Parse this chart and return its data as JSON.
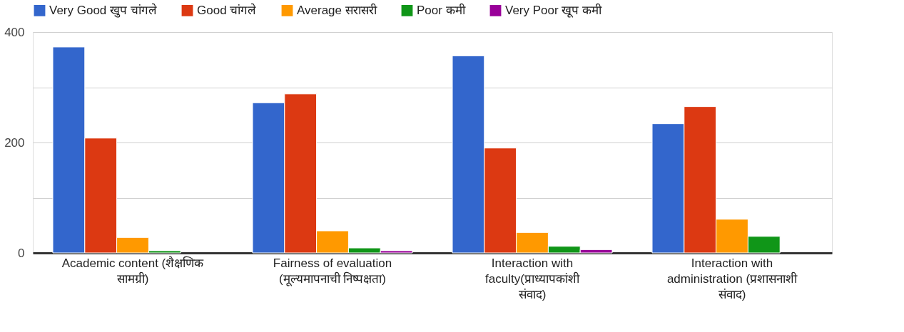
{
  "chart_data": {
    "type": "bar",
    "categories": [
      "Academic content (शैक्षणिक सामग्री)",
      "Fairness of evaluation (मूल्यमापनाची निष्पक्षता)",
      "Interaction with faculty(प्राध्यापकांशी संवाद)",
      "Interaction with administration (प्रशासनाशी संवाद)"
    ],
    "series": [
      {
        "name": "Very Good खुप चांगले",
        "color": "#3366cc",
        "values": [
          373,
          272,
          357,
          234
        ]
      },
      {
        "name": "Good चांगले",
        "color": "#dc3912",
        "values": [
          208,
          288,
          190,
          265
        ]
      },
      {
        "name": "Average सरासरी",
        "color": "#ff9900",
        "values": [
          28,
          40,
          37,
          61
        ]
      },
      {
        "name": "Poor कमी",
        "color": "#109618",
        "values": [
          4,
          9,
          12,
          30
        ]
      },
      {
        "name": "Very Poor खूप कमी",
        "color": "#990099",
        "values": [
          null,
          4,
          6,
          null
        ]
      }
    ],
    "ylim": [
      0,
      400
    ],
    "yticks": [
      0,
      {
        "value": 100,
        "label": null
      },
      200,
      {
        "value": 300,
        "label": null
      },
      400
    ],
    "grid": "y",
    "legend": "top"
  }
}
